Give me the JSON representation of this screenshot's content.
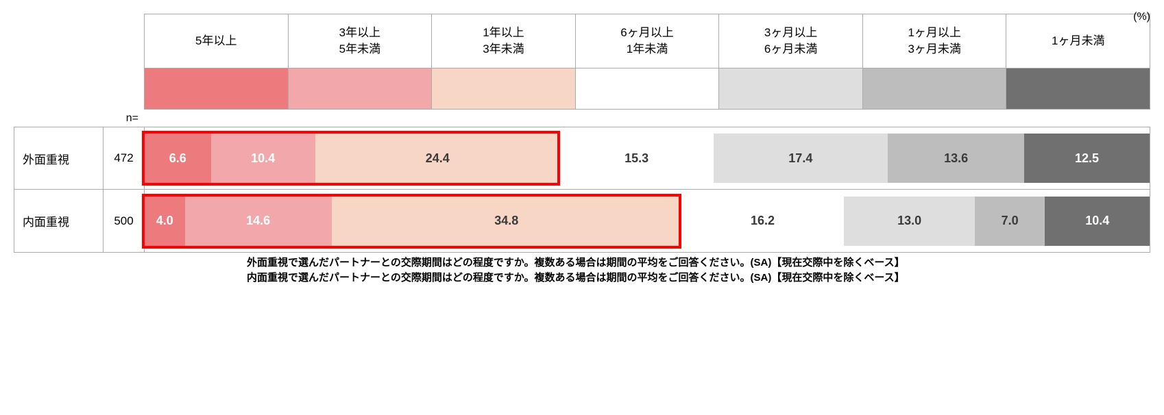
{
  "unit": "(%)",
  "n_label": "n=",
  "categories": [
    {
      "label": "5年以上",
      "color": "#ed7b7e",
      "text_color": "#ffffff"
    },
    {
      "label": "3年以上\n5年未満",
      "color": "#f2a8ab",
      "text_color": "#ffffff"
    },
    {
      "label": "1年以上\n3年未満",
      "color": "#f8d6c6",
      "text_color": "#3a3a3a"
    },
    {
      "label": "6ヶ月以上\n1年未満",
      "color": "#ffffff",
      "text_color": "#3a3a3a"
    },
    {
      "label": "3ヶ月以上\n6ヶ月未満",
      "color": "#dedede",
      "text_color": "#3a3a3a"
    },
    {
      "label": "1ヶ月以上\n3ヶ月未満",
      "color": "#bdbdbd",
      "text_color": "#3a3a3a"
    },
    {
      "label": "1ヶ月未満",
      "color": "#707070",
      "text_color": "#ffffff"
    }
  ],
  "rows": [
    {
      "label": "外面重視",
      "n": "472",
      "values": [
        6.6,
        10.4,
        24.4,
        15.3,
        17.4,
        13.6,
        12.5
      ],
      "highlight_first": 3
    },
    {
      "label": "内面重視",
      "n": "500",
      "values": [
        4.0,
        14.6,
        34.8,
        16.2,
        13.0,
        7.0,
        10.4
      ],
      "highlight_first": 3
    }
  ],
  "highlight_border_color": "#ff0000",
  "caption_lines": [
    "外面重視で選んだパートナーとの交際期間はどの程度ですか。複数ある場合は期間の平均をご回答ください。(SA)【現在交際中を除くベース】",
    "内面重視で選んだパートナーとの交際期間はどの程度ですか。複数ある場合は期間の平均をご回答ください。(SA)【現在交際中を除くベース】"
  ],
  "style": {
    "background": "#ffffff",
    "grid_border": "#aaaaaa",
    "label_fontsize": 17,
    "value_fontsize": 18,
    "caption_fontsize": 15,
    "unit_fontsize": 16
  }
}
